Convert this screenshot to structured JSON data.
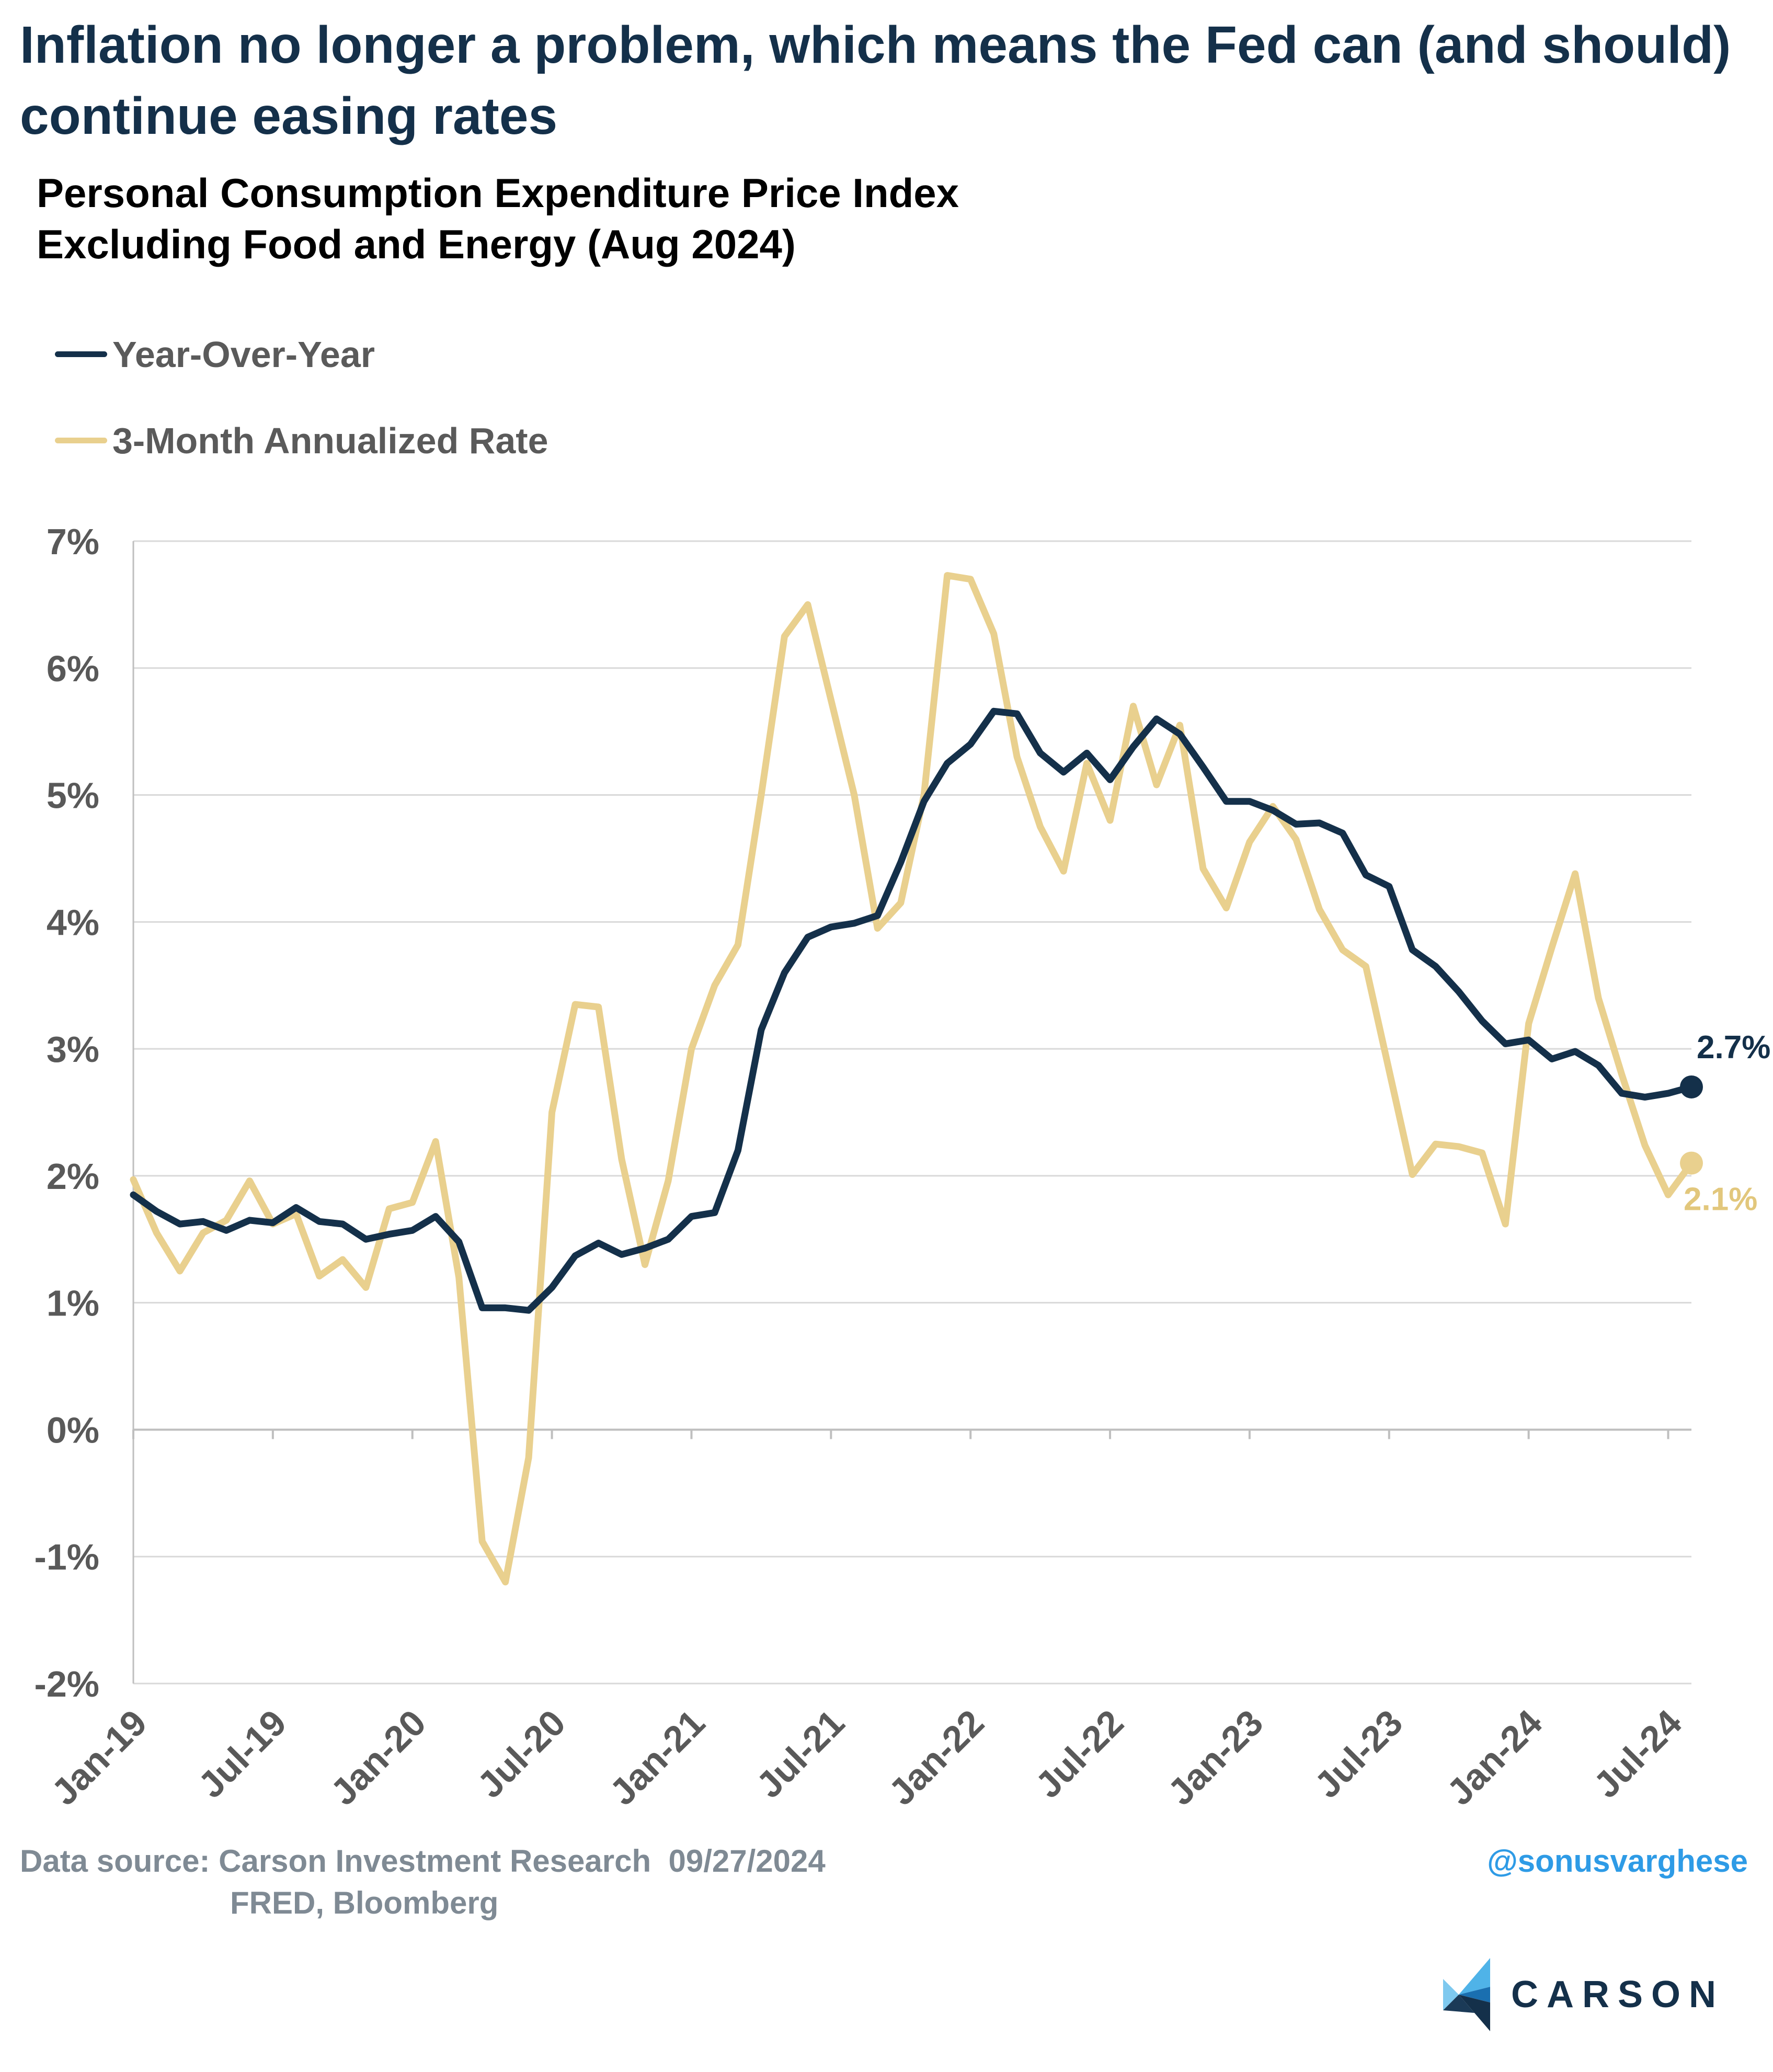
{
  "headline": "Inflation no longer a problem, which means the Fed can (and should) continue easing rates",
  "chart_data": {
    "type": "line",
    "title_line1": "Personal Consumption Expenditure Price Index",
    "title_line2": "Excluding Food and Energy (Aug 2024)",
    "x_start": "Jan-19",
    "x_end": "Aug-24",
    "x_tick_labels": [
      "Jan-19",
      "Jul-19",
      "Jan-20",
      "Jul-20",
      "Jan-21",
      "Jul-21",
      "Jan-22",
      "Jul-22",
      "Jan-23",
      "Jul-23",
      "Jan-24",
      "Jul-24"
    ],
    "y_tick_labels": [
      "7%",
      "6%",
      "5%",
      "4%",
      "3%",
      "2%",
      "1%",
      "0%",
      "-1%",
      "-2%"
    ],
    "ylim": [
      -2,
      7
    ],
    "grid": true,
    "legend_position": "top-left",
    "series": [
      {
        "name": "Year-Over-Year",
        "color": "#14304a",
        "end_label": "2.7%",
        "values": [
          1.85,
          1.72,
          1.62,
          1.64,
          1.57,
          1.65,
          1.63,
          1.75,
          1.64,
          1.62,
          1.5,
          1.54,
          1.57,
          1.68,
          1.48,
          0.96,
          0.96,
          0.94,
          1.12,
          1.37,
          1.47,
          1.38,
          1.43,
          1.5,
          1.68,
          1.71,
          2.2,
          3.15,
          3.6,
          3.88,
          3.96,
          3.99,
          4.05,
          4.47,
          4.95,
          5.25,
          5.4,
          5.66,
          5.64,
          5.33,
          5.18,
          5.33,
          5.12,
          5.38,
          5.6,
          5.48,
          5.22,
          4.95,
          4.95,
          4.88,
          4.77,
          4.78,
          4.7,
          4.37,
          4.28,
          3.78,
          3.65,
          3.45,
          3.22,
          3.04,
          3.07,
          2.92,
          2.98,
          2.87,
          2.65,
          2.62,
          2.65,
          2.7
        ]
      },
      {
        "name": "3-Month Annualized Rate",
        "color": "#e9d08e",
        "end_label": "2.1%",
        "values": [
          1.97,
          1.55,
          1.25,
          1.55,
          1.65,
          1.96,
          1.62,
          1.7,
          1.21,
          1.34,
          1.12,
          1.74,
          1.79,
          2.27,
          1.2,
          -0.88,
          -1.2,
          -0.22,
          2.5,
          3.35,
          3.33,
          2.13,
          1.3,
          1.96,
          3.0,
          3.5,
          3.82,
          5.0,
          6.25,
          6.5,
          5.75,
          5.0,
          3.95,
          4.15,
          5.0,
          6.73,
          6.7,
          6.27,
          5.3,
          4.75,
          4.4,
          5.25,
          4.8,
          5.7,
          5.08,
          5.55,
          4.42,
          4.11,
          4.63,
          4.91,
          4.65,
          4.1,
          3.78,
          3.65,
          2.83,
          2.01,
          2.25,
          2.23,
          2.18,
          1.62,
          3.2,
          3.8,
          4.38,
          3.4,
          2.8,
          2.24,
          1.85,
          2.1
        ]
      }
    ]
  },
  "footer": {
    "source_line1": "Data source: Carson Investment Research  09/27/2024",
    "source_line2": "FRED, Bloomberg",
    "handle": "@sonusvarghese",
    "logo_text": "CARSON"
  }
}
